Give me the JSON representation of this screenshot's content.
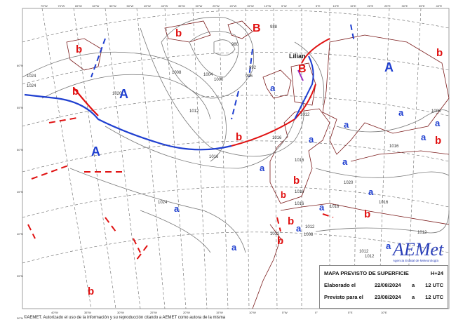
{
  "map": {
    "lon_ticks_top": [
      "75°W",
      "70°W",
      "65°W",
      "60°W",
      "55°W",
      "50°W",
      "45°W",
      "40°W",
      "35°W",
      "30°W",
      "25°W",
      "20°W",
      "15°W",
      "10°W",
      "5°W",
      "0°",
      "5°E",
      "10°E",
      "15°E",
      "20°E",
      "25°E",
      "30°E",
      "35°E",
      "40°E"
    ],
    "lon_ticks_bottom": [
      "40°W",
      "35°W",
      "30°W",
      "25°W",
      "20°W",
      "15°W",
      "10°W",
      "5°W",
      "0°",
      "5°E",
      "10°E"
    ],
    "lat_ticks_left": [
      "60°N",
      "55°N",
      "50°N",
      "45°N",
      "40°N",
      "35°N",
      "30°N"
    ],
    "isobar_labels": [
      "1024",
      "1024",
      "1020",
      "1008",
      "1004",
      "1000",
      "996",
      "992",
      "980",
      "988",
      "1012",
      "1012",
      "1016",
      "1016",
      "1016",
      "1020",
      "1024",
      "1016",
      "1016",
      "1016",
      "1012",
      "1012",
      "1012",
      "1012",
      "1012",
      "1008",
      "1016",
      "1016",
      "1008"
    ],
    "highs": [
      "A",
      "A",
      "A",
      "a",
      "a",
      "a",
      "a",
      "a",
      "a",
      "a",
      "a",
      "a",
      "a",
      "a",
      "a",
      "a",
      "a"
    ],
    "lows": [
      "b",
      "b",
      "B",
      "B",
      "b",
      "b",
      "b",
      "b",
      "b",
      "b",
      "b",
      "b",
      "b",
      "b"
    ],
    "place_label": "Lilian",
    "colors": {
      "high": "#1f3fd0",
      "low": "#e01010",
      "cold_front": "#1f3fd0",
      "warm_front": "#e01010",
      "occluded_front": "#9b30c0",
      "coast": "#7a1a1a"
    }
  },
  "logo": {
    "text": "AEMet",
    "subtitle": "Agencia Estatal de Meteorología"
  },
  "info": {
    "title": "MAPA PREVISTO DE SUPERFICIE",
    "horizon": "H+24",
    "elaborated_label": "Elaborado el",
    "elaborated_date": "22/08/2024",
    "elaborated_a": "a",
    "elaborated_time": "12 UTC",
    "forecast_label": "Previsto para el",
    "forecast_date": "23/08/2024",
    "forecast_a": "a",
    "forecast_time": "12 UTC"
  },
  "footer": "©AEMET. Autorizado el uso de la información y su reproducción citando a AEMET como autora de la misma"
}
